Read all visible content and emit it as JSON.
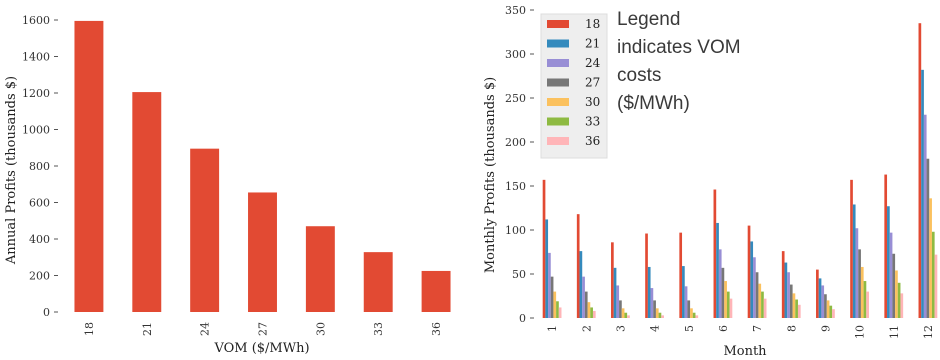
{
  "chart_data": [
    {
      "type": "bar",
      "categories": [
        "18",
        "21",
        "24",
        "27",
        "30",
        "33",
        "36"
      ],
      "values": [
        1595,
        1205,
        895,
        655,
        470,
        328,
        225
      ],
      "xlabel": "VOM ($/MWh)",
      "ylabel": "Annual Profits (thousands $)",
      "ylim": [
        0,
        1600
      ],
      "yticks": [
        0,
        200,
        400,
        600,
        800,
        1000,
        1200,
        1400,
        1600
      ],
      "grid": false,
      "color": "#e24a33"
    },
    {
      "type": "bar",
      "categories": [
        "1",
        "2",
        "3",
        "4",
        "5",
        "6",
        "7",
        "8",
        "9",
        "10",
        "11",
        "12"
      ],
      "xlabel": "Month",
      "ylabel": "Monthly Profits (thousands $)",
      "ylim": [
        0,
        350
      ],
      "yticks": [
        0,
        50,
        100,
        150,
        200,
        250,
        300,
        350
      ],
      "grid": false,
      "legend_position": "top-left",
      "annotation": [
        "Legend",
        "indicates VOM",
        "costs",
        "($/MWh)"
      ],
      "series": [
        {
          "name": "18",
          "color": "#e24a33",
          "values": [
            157,
            118,
            86,
            96,
            97,
            146,
            105,
            76,
            55,
            157,
            163,
            335
          ]
        },
        {
          "name": "21",
          "color": "#348abd",
          "values": [
            112,
            76,
            57,
            58,
            59,
            108,
            87,
            63,
            45,
            129,
            127,
            282
          ]
        },
        {
          "name": "24",
          "color": "#988ed5",
          "values": [
            74,
            47,
            37,
            34,
            36,
            78,
            69,
            52,
            37,
            102,
            97,
            231
          ]
        },
        {
          "name": "27",
          "color": "#777777",
          "values": [
            47,
            30,
            20,
            20,
            20,
            57,
            52,
            38,
            27,
            78,
            73,
            181
          ]
        },
        {
          "name": "30",
          "color": "#fbc15e",
          "values": [
            30,
            18,
            11,
            11,
            11,
            42,
            39,
            28,
            20,
            58,
            54,
            136
          ]
        },
        {
          "name": "33",
          "color": "#8eba42",
          "values": [
            19,
            12,
            6,
            6,
            6,
            30,
            30,
            21,
            14,
            42,
            40,
            98
          ]
        },
        {
          "name": "36",
          "color": "#ffb5b8",
          "values": [
            12,
            8,
            3,
            3,
            3,
            22,
            22,
            15,
            10,
            30,
            28,
            72
          ]
        }
      ]
    }
  ]
}
